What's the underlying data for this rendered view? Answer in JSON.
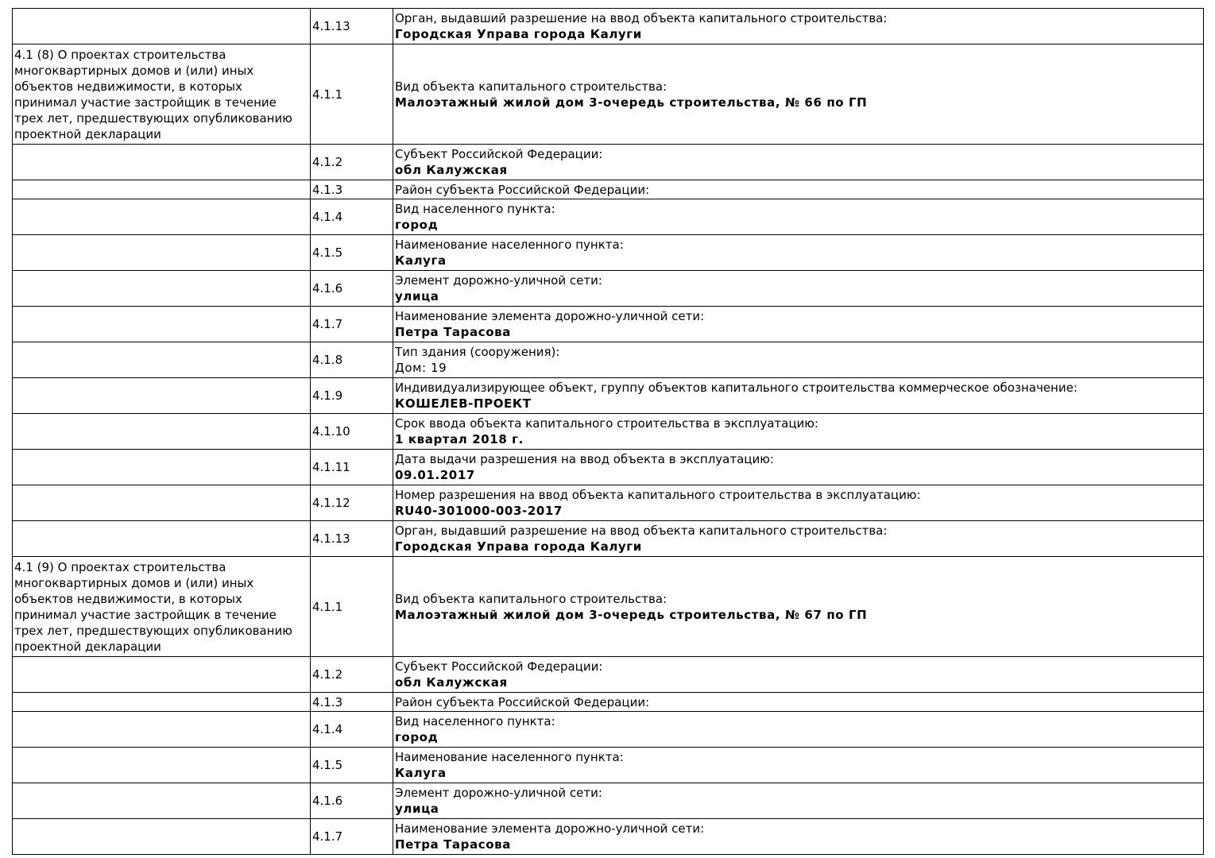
{
  "rows": [
    {
      "section": "",
      "num": "4.1.13",
      "label": "Орган, выдавший разрешение на ввод объекта капитального строительства:",
      "value": "Городская Управа города Калуги"
    },
    {
      "section": "4.1 (8) О проектах строительства многоквартирных домов и (или) иных объектов недвижимости, в которых принимал участие застройщик в течение трех лет, предшествующих опубликованию проектной декларации",
      "num": "4.1.1",
      "label": "Вид объекта капитального строительства:",
      "value": "Малоэтажный жилой дом 3-очередь строительства, № 66 по ГП"
    },
    {
      "section": "",
      "num": "4.1.2",
      "label": "Субъект Российской Федерации:",
      "value": "обл Калужская"
    },
    {
      "section": "",
      "num": "4.1.3",
      "label": "Район субъекта Российской Федерации:",
      "value": ""
    },
    {
      "section": "",
      "num": "4.1.4",
      "label": "Вид населенного пункта:",
      "value": "город"
    },
    {
      "section": "",
      "num": "4.1.5",
      "label": "Наименование населенного пункта:",
      "value": "Калуга"
    },
    {
      "section": "",
      "num": "4.1.6",
      "label": "Элемент дорожно-уличной сети:",
      "value": "улица"
    },
    {
      "section": "",
      "num": "4.1.7",
      "label": "Наименование элемента дорожно-уличной сети:",
      "value": "Петра Тарасова"
    },
    {
      "section": "",
      "num": "4.1.8",
      "label": "Тип здания (сооружения):",
      "value": "Дом: 19"
    },
    {
      "section": "",
      "num": "4.1.9",
      "label": "Индивидуализирующее объект, группу объектов капитального строительства коммерческое обозначение:",
      "value": "КОШЕЛЕВ-ПРОЕКТ"
    },
    {
      "section": "",
      "num": "4.1.10",
      "label": "Срок ввода объекта капитального строительства в эксплуатацию:",
      "value": "1 квартал 2018 г."
    },
    {
      "section": "",
      "num": "4.1.11",
      "label": "Дата выдачи разрешения на ввод объекта в эксплуатацию:",
      "value": "09.01.2017"
    },
    {
      "section": "",
      "num": "4.1.12",
      "label": "Номер разрешения на ввод объекта капитального строительства в эксплуатацию:",
      "value": "RU40-301000-003-2017"
    },
    {
      "section": "",
      "num": "4.1.13",
      "label": "Орган, выдавший разрешение на ввод объекта капитального строительства:",
      "value": "Городская Управа города Калуги"
    },
    {
      "section": "4.1 (9) О проектах строительства многоквартирных домов и (или) иных объектов недвижимости, в которых принимал участие застройщик в течение трех лет, предшествующих опубликованию проектной декларации",
      "num": "4.1.1",
      "label": "Вид объекта капитального строительства:",
      "value": "Малоэтажный жилой дом 3-очередь строительства, № 67 по ГП"
    },
    {
      "section": "",
      "num": "4.1.2",
      "label": "Субъект Российской Федерации:",
      "value": "обл Калужская"
    },
    {
      "section": "",
      "num": "4.1.3",
      "label": "Район субъекта Российской Федерации:",
      "value": ""
    },
    {
      "section": "",
      "num": "4.1.4",
      "label": "Вид населенного пункта:",
      "value": "город"
    },
    {
      "section": "",
      "num": "4.1.5",
      "label": "Наименование населенного пункта:",
      "value": "Калуга"
    },
    {
      "section": "",
      "num": "4.1.6",
      "label": "Элемент дорожно-уличной сети:",
      "value": "улица"
    },
    {
      "section": "",
      "num": "4.1.7",
      "label": "Наименование элемента дорожно-уличной сети:",
      "value": "Петра Тарасова"
    }
  ]
}
